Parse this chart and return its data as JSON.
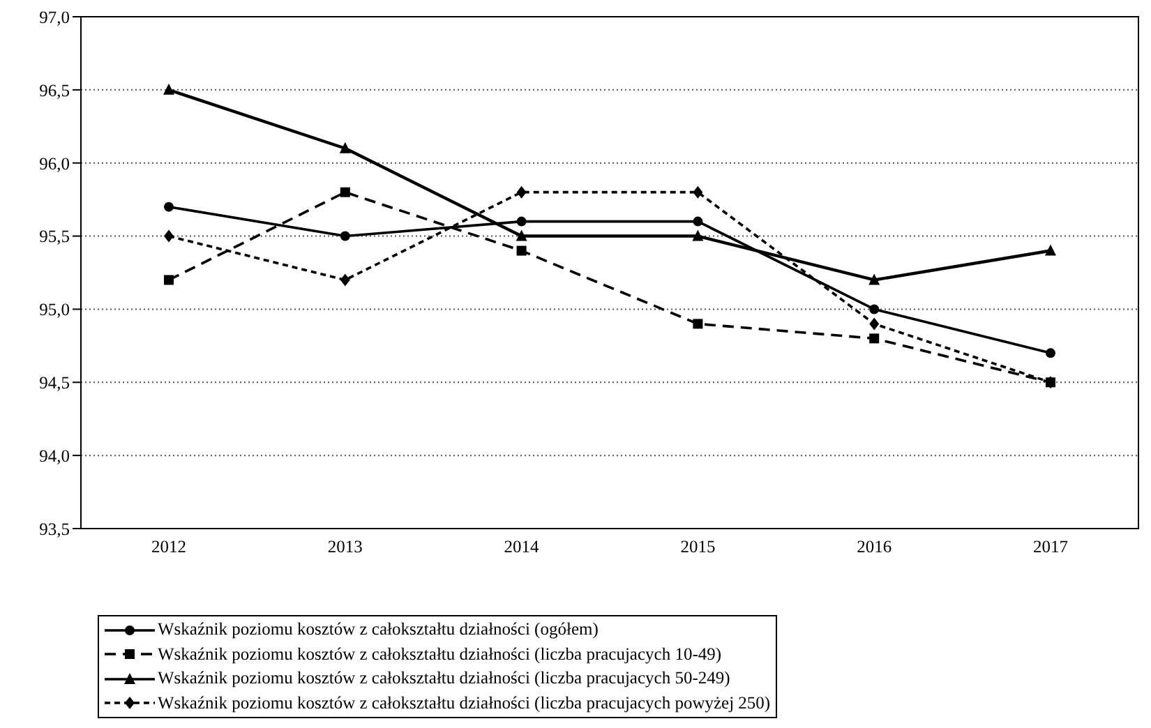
{
  "chart_data": {
    "type": "line",
    "categories": [
      "2012",
      "2013",
      "2014",
      "2015",
      "2016",
      "2017"
    ],
    "series": [
      {
        "name": "Wskaźnik poziomu kosztów z całokształtu działności (ogółem)",
        "color": "#000000",
        "marker": "circle",
        "line_style": "solid",
        "values": [
          95.7,
          95.5,
          95.6,
          95.6,
          95.0,
          94.7
        ]
      },
      {
        "name": "Wskaźnik poziomu kosztów z całokształtu działności (liczba pracujacych 10-49)",
        "color": "#000000",
        "marker": "square",
        "line_style": "dashed",
        "values": [
          95.2,
          95.8,
          95.4,
          94.9,
          94.8,
          94.5
        ]
      },
      {
        "name": "Wskaźnik poziomu kosztów z całokształtu działności (liczba pracujacych 50-249)",
        "color": "#000000",
        "marker": "triangle",
        "line_style": "solid",
        "values": [
          96.5,
          96.1,
          95.5,
          95.5,
          95.2,
          95.4
        ]
      },
      {
        "name": "Wskaźnik poziomu kosztów z całokształtu działności (liczba pracujacych powyżej 250)",
        "color": "#000000",
        "marker": "diamond",
        "line_style": "dotted",
        "values": [
          95.5,
          95.2,
          95.8,
          95.8,
          94.9,
          94.5
        ]
      }
    ],
    "ylim": [
      93.5,
      97.0
    ],
    "yticks": [
      {
        "value": 93.5,
        "label": "93,5"
      },
      {
        "value": 94.0,
        "label": "94,0"
      },
      {
        "value": 94.5,
        "label": "94,5"
      },
      {
        "value": 95.0,
        "label": "95,0"
      },
      {
        "value": 95.5,
        "label": "95,5"
      },
      {
        "value": 96.0,
        "label": "96,0"
      },
      {
        "value": 96.5,
        "label": "96,5"
      },
      {
        "value": 97.0,
        "label": "97,0"
      }
    ],
    "grid": "y",
    "legend": "bottom"
  }
}
